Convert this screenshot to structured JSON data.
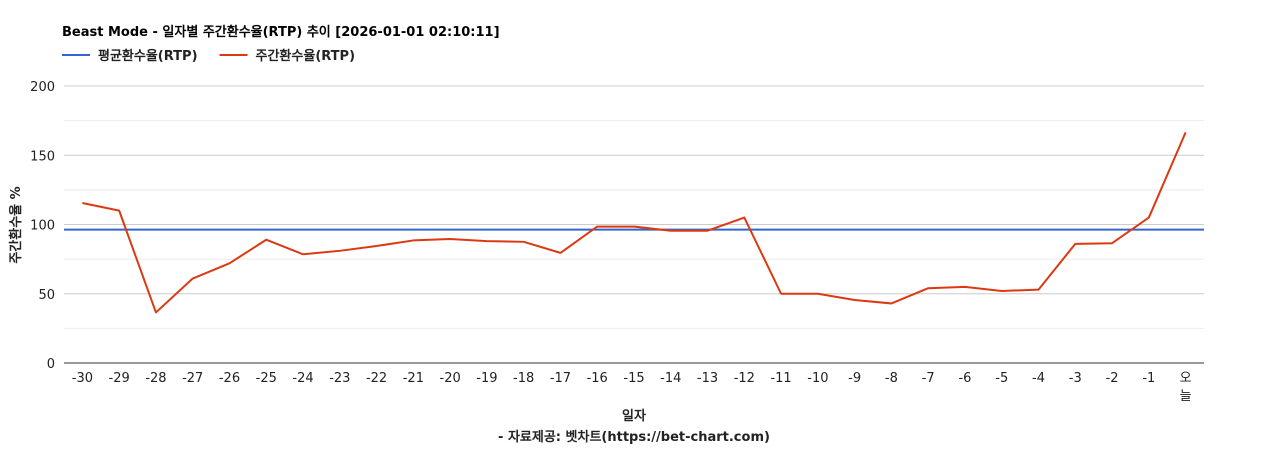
{
  "chart_data": {
    "type": "line",
    "title": "Beast Mode - 일자별 주간환수율(RTP) 추이 [2026-01-01 02:10:11]",
    "xlabel": "일자",
    "ylabel": "주간환수율 %",
    "footer": "- 자료제공: 벳차트(https://bet-chart.com)",
    "ylim": [
      0,
      200
    ],
    "yticks": [
      0,
      50,
      100,
      150,
      200
    ],
    "grid": true,
    "legend_position": "top-left",
    "categories": [
      "-30",
      "-29",
      "-28",
      "-27",
      "-26",
      "-25",
      "-24",
      "-23",
      "-22",
      "-21",
      "-20",
      "-19",
      "-18",
      "-17",
      "-16",
      "-15",
      "-14",
      "-13",
      "-12",
      "-11",
      "-10",
      "-9",
      "-8",
      "-7",
      "-6",
      "-5",
      "-4",
      "-3",
      "-2",
      "-1",
      "오늘"
    ],
    "series": [
      {
        "name": "평균환수율(RTP)",
        "color": "#3366cc",
        "values": [
          96.3,
          96.3,
          96.3,
          96.3,
          96.3,
          96.3,
          96.3,
          96.3,
          96.3,
          96.3,
          96.3,
          96.3,
          96.3,
          96.3,
          96.3,
          96.3,
          96.3,
          96.3,
          96.3,
          96.3,
          96.3,
          96.3,
          96.3,
          96.3,
          96.3,
          96.3,
          96.3,
          96.3,
          96.3,
          96.3,
          96.3
        ]
      },
      {
        "name": "주간환수율(RTP)",
        "color": "#dc3912",
        "values": [
          115.5,
          110,
          36.5,
          61,
          72,
          89,
          78.5,
          81,
          84.5,
          88.5,
          89.5,
          88,
          87.5,
          79.5,
          98.5,
          98.5,
          95.5,
          95.5,
          105,
          50,
          50,
          45.5,
          43,
          54,
          55,
          52,
          53,
          86,
          86.5,
          105,
          166.5
        ]
      }
    ]
  }
}
